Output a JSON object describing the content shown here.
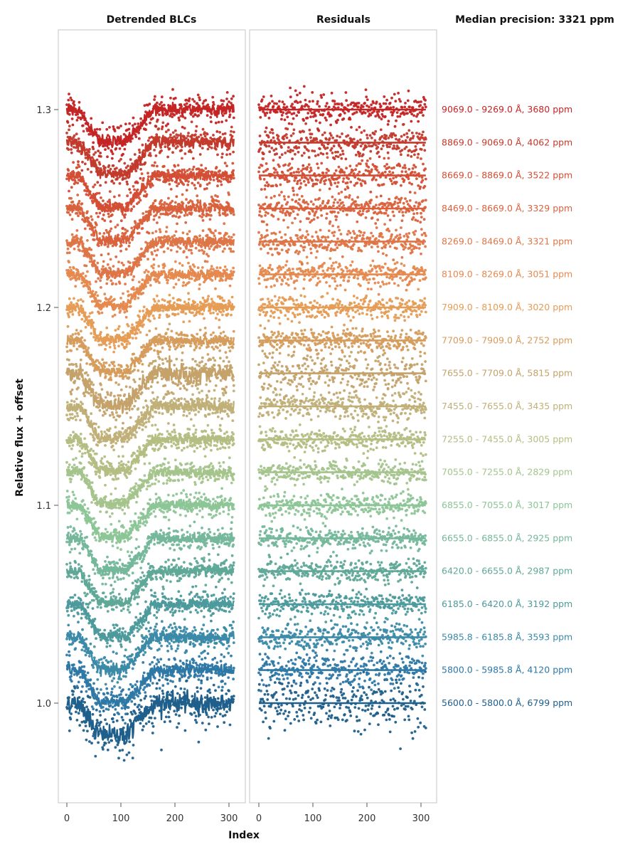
{
  "chart_data": {
    "type": "scatter",
    "summary": "Median precision: 3321 ppm",
    "panels": [
      "Detrended BLCs",
      "Residuals"
    ],
    "xlabel": "Index",
    "ylabel": "Relative flux + offset",
    "xlim": [
      -15,
      330
    ],
    "ylim": [
      0.95,
      1.335
    ],
    "xticks": [
      "0",
      "100",
      "200",
      "300"
    ],
    "yticks": [
      "1.0",
      "1.1",
      "1.2",
      "1.3"
    ],
    "ytick_values": [
      1.0,
      1.1,
      1.2,
      1.3
    ],
    "xtick_values": [
      0,
      100,
      200,
      300
    ],
    "n_points": 310,
    "offset_step": 0.01667,
    "series": [
      {
        "name": "5600.0 - 5800.0 Å, 6799 ppm",
        "label": "5600.0 - 5800.0 Å, 6799 ppm",
        "offset": 1.0,
        "ppm": 6799,
        "color": "#1f5f8b"
      },
      {
        "name": "5800.0 - 5985.8 Å, 4120 ppm",
        "label": "5800.0 - 5985.8 Å, 4120 ppm",
        "offset": 1.0167,
        "ppm": 4120,
        "color": "#2e78a6"
      },
      {
        "name": "5985.8 - 6185.8 Å, 3593 ppm",
        "label": "5985.8 - 6185.8 Å, 3593 ppm",
        "offset": 1.0333,
        "ppm": 3593,
        "color": "#3b8aa8"
      },
      {
        "name": "6185.0 - 6420.0 Å, 3192 ppm",
        "label": "6185.0 - 6420.0 Å, 3192 ppm",
        "offset": 1.05,
        "ppm": 3192,
        "color": "#4c9a9c"
      },
      {
        "name": "6420.0 - 6655.0 Å, 2987 ppm",
        "label": "6420.0 - 6655.0 Å, 2987 ppm",
        "offset": 1.0667,
        "ppm": 2987,
        "color": "#5fa898"
      },
      {
        "name": "6655.0 - 6855.0 Å, 2925 ppm",
        "label": "6655.0 - 6855.0 Å, 2925 ppm",
        "offset": 1.0833,
        "ppm": 2925,
        "color": "#74b79a"
      },
      {
        "name": "6855.0 - 7055.0 Å, 3017 ppm",
        "label": "6855.0 - 7055.0 Å, 3017 ppm",
        "offset": 1.1,
        "ppm": 3017,
        "color": "#8cc596"
      },
      {
        "name": "7055.0 - 7255.0 Å, 2829 ppm",
        "label": "7055.0 - 7255.0 Å, 2829 ppm",
        "offset": 1.1167,
        "ppm": 2829,
        "color": "#a4c48c"
      },
      {
        "name": "7255.0 - 7455.0 Å, 3005 ppm",
        "label": "7255.0 - 7455.0 Å, 3005 ppm",
        "offset": 1.1333,
        "ppm": 3005,
        "color": "#b4bd82"
      },
      {
        "name": "7455.0 - 7655.0 Å, 3435 ppm",
        "label": "7455.0 - 7655.0 Å, 3435 ppm",
        "offset": 1.15,
        "ppm": 3435,
        "color": "#c0b078"
      },
      {
        "name": "7655.0 - 7709.0 Å, 5815 ppm",
        "label": "7655.0 - 7709.0 Å, 5815 ppm",
        "offset": 1.1667,
        "ppm": 5815,
        "color": "#c4a26a"
      },
      {
        "name": "7709.0 - 7909.0 Å, 2752 ppm",
        "label": "7709.0 - 7909.0 Å, 2752 ppm",
        "offset": 1.1833,
        "ppm": 2752,
        "color": "#d69c5c"
      },
      {
        "name": "7909.0 - 8109.0 Å, 3020 ppm",
        "label": "7909.0 - 8109.0 Å, 3020 ppm",
        "offset": 1.2,
        "ppm": 3020,
        "color": "#e59c55"
      },
      {
        "name": "8109.0 - 8269.0 Å, 3051 ppm",
        "label": "8109.0 - 8269.0 Å, 3051 ppm",
        "offset": 1.2167,
        "ppm": 3051,
        "color": "#e5894f"
      },
      {
        "name": "8269.0 - 8469.0 Å, 3321 ppm",
        "label": "8269.0 - 8469.0 Å, 3321 ppm",
        "offset": 1.2333,
        "ppm": 3321,
        "color": "#de7547"
      },
      {
        "name": "8469.0 - 8669.0 Å, 3329 ppm",
        "label": "8469.0 - 8669.0 Å, 3329 ppm",
        "offset": 1.25,
        "ppm": 3329,
        "color": "#d9623d"
      },
      {
        "name": "8669.0 - 8869.0 Å, 3522 ppm",
        "label": "8669.0 - 8869.0 Å, 3522 ppm",
        "offset": 1.2667,
        "ppm": 3522,
        "color": "#d34e34"
      },
      {
        "name": "8869.0 - 9069.0 Å, 4062 ppm",
        "label": "8869.0 - 9069.0 Å, 4062 ppm",
        "offset": 1.2833,
        "ppm": 4062,
        "color": "#c33a2c"
      },
      {
        "name": "9069.0 - 9269.0 Å, 3680 ppm",
        "label": "9069.0 - 9269.0 Å, 3680 ppm",
        "offset": 1.3,
        "ppm": 3680,
        "color": "#c42424"
      }
    ],
    "transit": {
      "ingress_start": 25,
      "ingress_end": 60,
      "egress_start": 110,
      "egress_end": 160,
      "depth": 0.016
    },
    "grid": false,
    "legend": "right"
  }
}
